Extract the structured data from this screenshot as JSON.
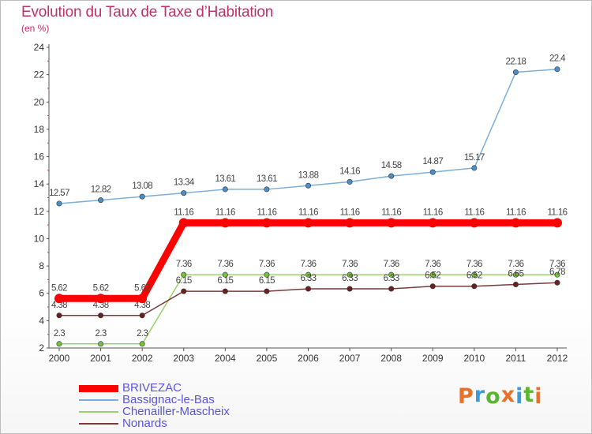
{
  "header": {
    "title": "Evolution du Taux de Taxe d’Habitation",
    "subtitle": "(en %)"
  },
  "logo": {
    "text": "Proxiti",
    "letter_colors": [
      "#e8712a",
      "#3a9ad9",
      "#5cb531",
      "#e8712a",
      "#3a9ad9",
      "#5cb531",
      "#e8712a"
    ]
  },
  "chart_data": {
    "type": "line",
    "title": "Evolution du Taux de Taxe d’Habitation",
    "subtitle": "(en %)",
    "xlabel": "",
    "ylabel": "",
    "x": [
      "2000",
      "2001",
      "2002",
      "2003",
      "2004",
      "2005",
      "2006",
      "2007",
      "2008",
      "2009",
      "2010",
      "2011",
      "2012"
    ],
    "ylim": [
      2,
      24
    ],
    "yticks": [
      2,
      4,
      6,
      8,
      10,
      12,
      14,
      16,
      18,
      20,
      22,
      24
    ],
    "grid": false,
    "legend_position": "bottom-left",
    "series": [
      {
        "name": "Bassignac-le-Bas",
        "color": "#7bafd9",
        "marker_color": "#4a8fc7",
        "values": [
          12.57,
          12.82,
          13.08,
          13.34,
          13.61,
          13.61,
          13.88,
          14.16,
          14.58,
          14.87,
          15.17,
          22.18,
          22.4
        ],
        "labels": [
          "12.57",
          "12.82",
          "13.08",
          "13.34",
          "13.61",
          "13.61",
          "13.88",
          "14.16",
          "14.58",
          "14.87",
          "15.17",
          "22.18",
          "22.4"
        ]
      },
      {
        "name": "Chenailler-Mascheix",
        "color": "#9ad36a",
        "marker_color": "#74c13a",
        "values": [
          2.3,
          2.3,
          2.3,
          7.36,
          7.36,
          7.36,
          7.36,
          7.36,
          7.36,
          7.36,
          7.36,
          7.36,
          7.36
        ],
        "labels": [
          "2.3",
          "2.3",
          "2.3",
          "7.36",
          "7.36",
          "7.36",
          "7.36",
          "7.36",
          "7.36",
          "7.36",
          "7.36",
          "7.36",
          "7.36"
        ]
      },
      {
        "name": "Nonards",
        "color": "#7a3a3a",
        "marker_color": "#6a2020",
        "values": [
          4.38,
          4.38,
          4.38,
          6.15,
          6.15,
          6.15,
          6.33,
          6.33,
          6.33,
          6.52,
          6.52,
          6.65,
          6.78
        ],
        "labels": [
          "4.38",
          "4.38",
          "4.38",
          "6.15",
          "6.15",
          "6.15",
          "6.33",
          "6.33",
          "6.33",
          "6.52",
          "6.52",
          "6.65",
          "6.78"
        ]
      },
      {
        "name": "BRIVEZAC",
        "color": "#ff0000",
        "marker_color": "#ff0000",
        "values": [
          5.62,
          5.62,
          5.62,
          11.16,
          11.16,
          11.16,
          11.16,
          11.16,
          11.16,
          11.16,
          11.16,
          11.16,
          11.16
        ],
        "labels": [
          "5.62",
          "5.62",
          "5.62",
          "11.16",
          "11.16",
          "11.16",
          "11.16",
          "11.16",
          "11.16",
          "11.16",
          "11.16",
          "11.16",
          "11.16"
        ]
      }
    ],
    "legend": [
      {
        "name": "BRIVEZAC",
        "color": "#ff0000",
        "thick": true
      },
      {
        "name": "Bassignac-le-Bas",
        "color": "#7bafd9",
        "thick": false
      },
      {
        "name": "Chenailler-Mascheix",
        "color": "#9ad36a",
        "thick": false
      },
      {
        "name": "Nonards",
        "color": "#7a3a3a",
        "thick": false
      }
    ]
  }
}
